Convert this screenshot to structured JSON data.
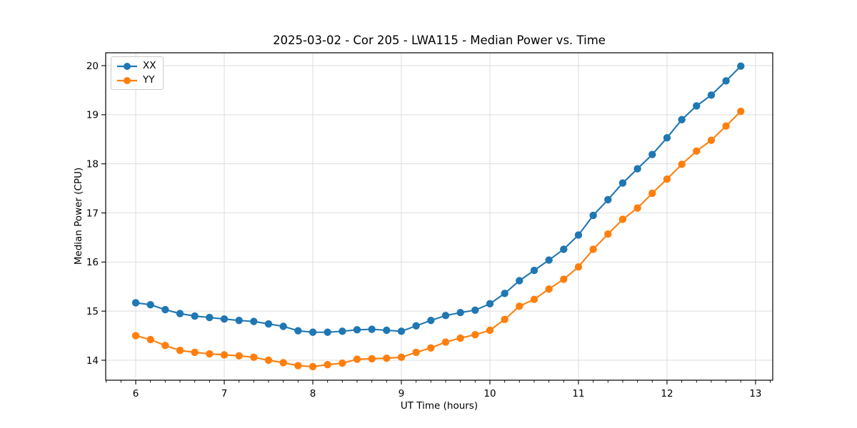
{
  "figure": {
    "title": "2025-03-02 - Cor 205 - LWA115 - Median Power vs. Time"
  },
  "chart_data": {
    "type": "line",
    "title": "2025-03-02 - Cor 205 - LWA115 - Median Power vs. Time",
    "xlabel": "UT Time (hours)",
    "ylabel": "Median Power (CPU)",
    "xlim": [
      5.661,
      13.194
    ],
    "ylim": [
      13.593,
      20.262
    ],
    "xticks": [
      6,
      7,
      8,
      9,
      10,
      11,
      12,
      13
    ],
    "yticks": [
      14,
      15,
      16,
      17,
      18,
      19,
      20
    ],
    "minor_tick_step_x": 0.16667,
    "grid": true,
    "grid_color": "#dddddd",
    "legend_position": "upper left",
    "x": [
      6.0,
      6.1667,
      6.3333,
      6.5,
      6.6667,
      6.8333,
      7.0,
      7.1667,
      7.3333,
      7.5,
      7.6667,
      7.8333,
      8.0,
      8.1667,
      8.3333,
      8.5,
      8.6667,
      8.8333,
      9.0,
      9.1667,
      9.3333,
      9.5,
      9.6667,
      9.8333,
      10.0,
      10.1667,
      10.3333,
      10.5,
      10.6667,
      10.8333,
      11.0,
      11.1667,
      11.3333,
      11.5,
      11.6667,
      11.8333,
      12.0,
      12.1667,
      12.3333,
      12.5,
      12.6667,
      12.8333
    ],
    "series": [
      {
        "name": "XX",
        "color": "#1f77b4",
        "marker": "circle",
        "values": [
          15.17,
          15.13,
          15.03,
          14.95,
          14.9,
          14.87,
          14.84,
          14.81,
          14.79,
          14.74,
          14.69,
          14.6,
          14.57,
          14.57,
          14.59,
          14.62,
          14.63,
          14.61,
          14.59,
          14.7,
          14.81,
          14.91,
          14.97,
          15.02,
          15.15,
          15.36,
          15.62,
          15.83,
          16.04,
          16.26,
          16.55,
          16.95,
          17.27,
          17.61,
          17.9,
          18.19,
          18.53,
          18.9,
          19.18,
          19.4,
          19.69,
          19.99
        ]
      },
      {
        "name": "YY",
        "color": "#ff7f0e",
        "marker": "circle",
        "values": [
          14.5,
          14.42,
          14.3,
          14.2,
          14.16,
          14.13,
          14.11,
          14.09,
          14.06,
          14.0,
          13.95,
          13.89,
          13.87,
          13.91,
          13.94,
          14.02,
          14.03,
          14.04,
          14.06,
          14.16,
          14.25,
          14.37,
          14.45,
          14.52,
          14.61,
          14.83,
          15.1,
          15.24,
          15.45,
          15.65,
          15.9,
          16.26,
          16.57,
          16.87,
          17.1,
          17.4,
          17.69,
          17.99,
          18.26,
          18.48,
          18.77,
          19.07
        ]
      }
    ]
  }
}
